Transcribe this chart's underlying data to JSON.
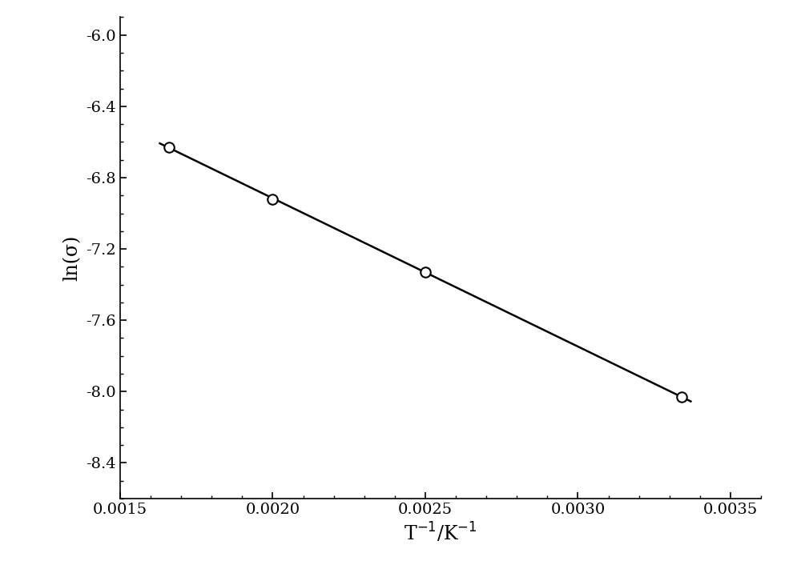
{
  "x_data": [
    0.00166,
    0.002,
    0.0025,
    0.00334
  ],
  "y_data": [
    -6.63,
    -6.92,
    -7.33,
    -8.03
  ],
  "line_x_start": 0.00163,
  "line_x_end": 0.00337,
  "xlabel": "T$^{-1}$/K$^{-1}$",
  "ylabel": "ln(σ)",
  "xlim": [
    0.0015,
    0.0036
  ],
  "ylim": [
    -8.6,
    -5.9
  ],
  "xticks": [
    0.0015,
    0.002,
    0.0025,
    0.003,
    0.0035
  ],
  "yticks": [
    -8.4,
    -8.0,
    -7.6,
    -7.2,
    -6.8,
    -6.4,
    -6.0
  ],
  "marker_size": 9,
  "line_color": "#000000",
  "marker_color": "white",
  "marker_edge_color": "#000000",
  "background_color": "#ffffff",
  "xlabel_fontsize": 17,
  "ylabel_fontsize": 17,
  "tick_fontsize": 14
}
